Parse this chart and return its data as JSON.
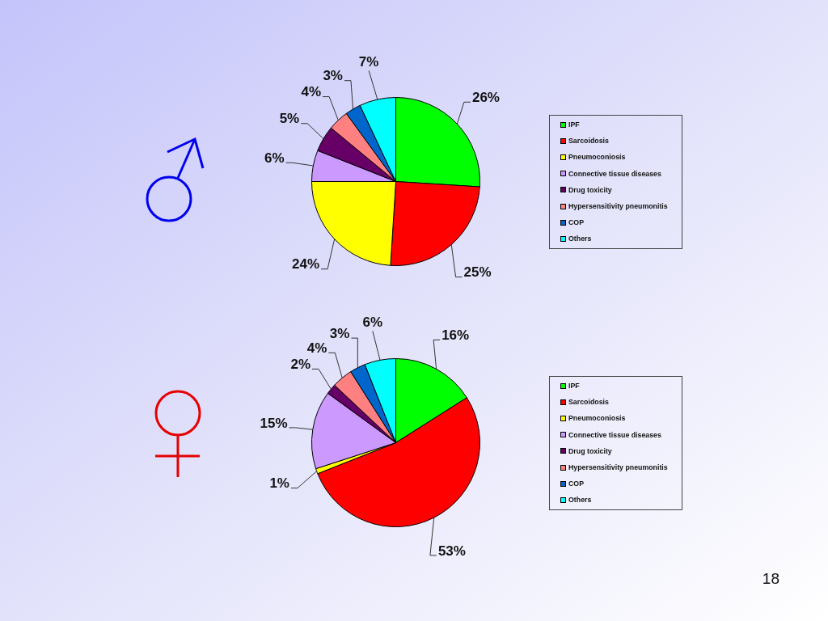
{
  "chart_data": [
    {
      "type": "pie",
      "categories": [
        "IPF",
        "Sarcoidosis",
        "Pneumoconiosis",
        "Connective tissue diseases",
        "Drug toxicity",
        "Hypersensitivity pneumonitis",
        "COP",
        "Others"
      ],
      "values": [
        26,
        25,
        24,
        6,
        5,
        4,
        3,
        7
      ],
      "colors": [
        "#00ff00",
        "#ff0000",
        "#ffff00",
        "#cc99ff",
        "#660066",
        "#ff8080",
        "#0066cc",
        "#00ffff"
      ],
      "value_labels": [
        "26%",
        "25%",
        "24%",
        "6%",
        "5%",
        "4%",
        "3%",
        "7%"
      ],
      "legend": "right"
    },
    {
      "type": "pie",
      "categories": [
        "IPF",
        "Sarcoidosis",
        "Pneumoconiosis",
        "Connective tissue diseases",
        "Drug toxicity",
        "Hypersensitivity pneumonitis",
        "COP",
        "Others"
      ],
      "values": [
        16,
        53,
        1,
        15,
        2,
        4,
        3,
        6
      ],
      "colors": [
        "#00ff00",
        "#ff0000",
        "#ffff00",
        "#cc99ff",
        "#660066",
        "#ff8080",
        "#0066cc",
        "#00ffff"
      ],
      "value_labels": [
        "16%",
        "53%",
        "1%",
        "15%",
        "2%",
        "4%",
        "3%",
        "6%"
      ],
      "legend": "right",
      "annotations": [
        "18"
      ]
    }
  ]
}
